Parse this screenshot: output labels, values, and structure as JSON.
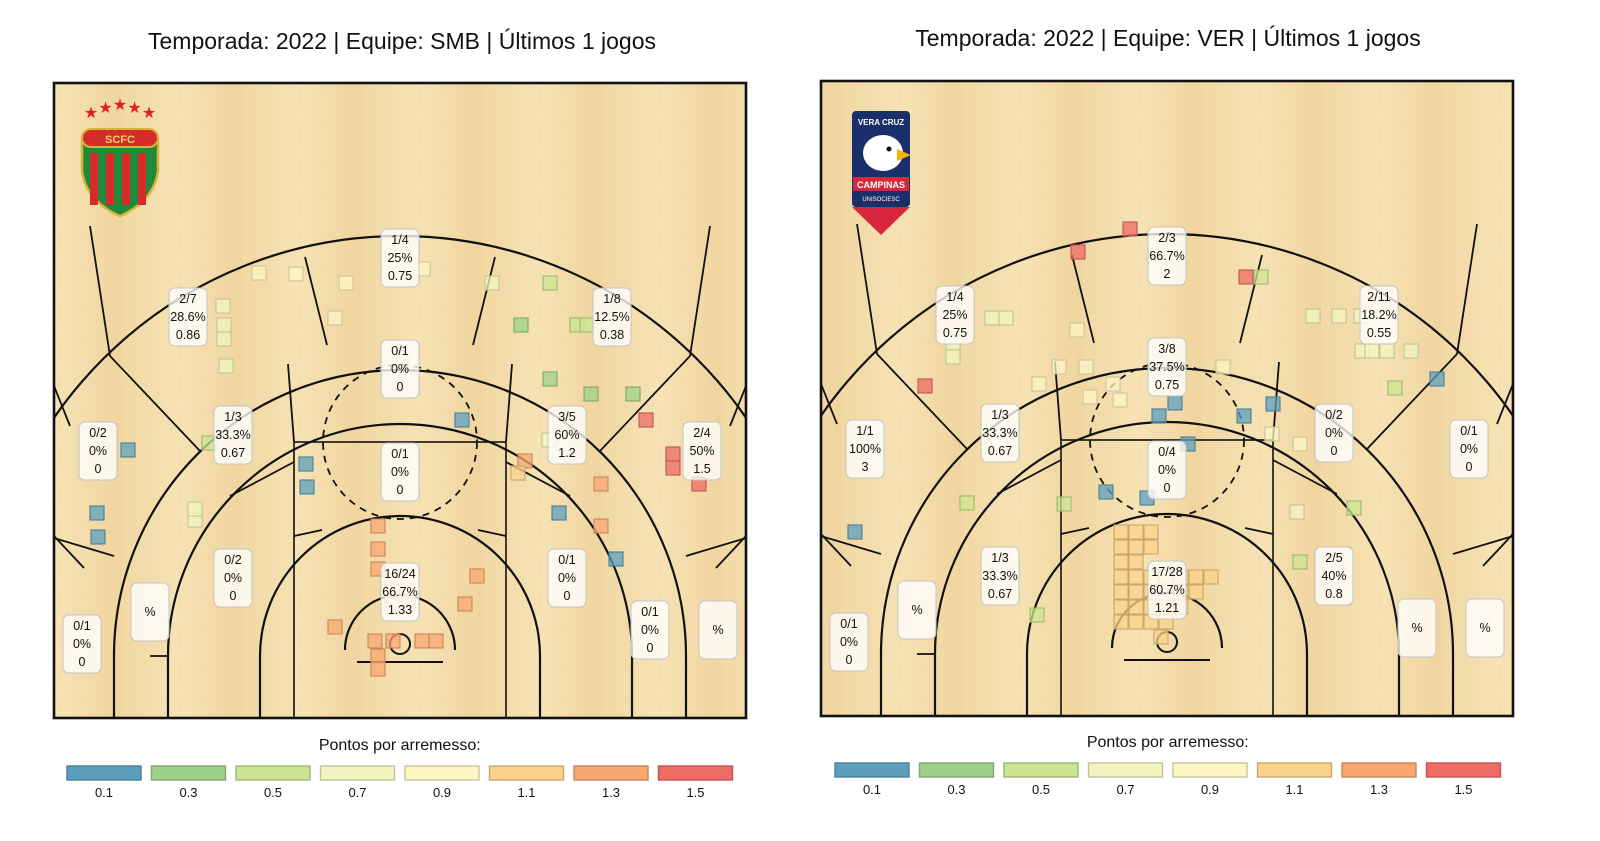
{
  "colorbar": {
    "title": "Pontos por arremesso:",
    "stops": [
      {
        "label": "0.1",
        "color": "#5b9fbd"
      },
      {
        "label": "0.3",
        "color": "#9fd18a"
      },
      {
        "label": "0.5",
        "color": "#cbe590"
      },
      {
        "label": "0.7",
        "color": "#f1f5bf"
      },
      {
        "label": "0.9",
        "color": "#fcf6c3"
      },
      {
        "label": "1.1",
        "color": "#fbd28a"
      },
      {
        "label": "1.3",
        "color": "#f9a771"
      },
      {
        "label": "1.5",
        "color": "#ee6b66"
      }
    ]
  },
  "chart_data": [
    {
      "type": "scatter",
      "title": "Temporada: 2022  |  Equipe: SMB | Últimos 1 jogos",
      "team": "SMB",
      "logo": {
        "type": "crest",
        "text": "SCFC"
      },
      "zones": [
        {
          "made": "1/4",
          "pct": "25%",
          "ppa": "0.75",
          "zone": "top-of-key-3"
        },
        {
          "made": "2/7",
          "pct": "28.6%",
          "ppa": "0.86",
          "zone": "left-wing-3"
        },
        {
          "made": "1/8",
          "pct": "12.5%",
          "ppa": "0.38",
          "zone": "right-wing-3"
        },
        {
          "made": "0/1",
          "pct": "0%",
          "ppa": "0",
          "zone": "top-long-mid"
        },
        {
          "made": "1/3",
          "pct": "33.3%",
          "ppa": "0.67",
          "zone": "left-long-mid"
        },
        {
          "made": "3/5",
          "pct": "60%",
          "ppa": "1.2",
          "zone": "right-long-mid"
        },
        {
          "made": "0/2",
          "pct": "0%",
          "ppa": "0",
          "zone": "left-corner-3-upper"
        },
        {
          "made": "2/4",
          "pct": "50%",
          "ppa": "1.5",
          "zone": "right-corner-3-upper"
        },
        {
          "made": "0/1",
          "pct": "0%",
          "ppa": "0",
          "zone": "paint-top"
        },
        {
          "made": "0/2",
          "pct": "0%",
          "ppa": "0",
          "zone": "left-short-mid"
        },
        {
          "made": "0/1",
          "pct": "0%",
          "ppa": "0",
          "zone": "right-short-mid"
        },
        {
          "made": "16/24",
          "pct": "66.7%",
          "ppa": "1.33",
          "zone": "restricted-area"
        },
        {
          "made": "",
          "pct": "%",
          "ppa": "",
          "zone": "left-baseline-mid"
        },
        {
          "made": "0/1",
          "pct": "0%",
          "ppa": "0",
          "zone": "right-baseline-mid"
        },
        {
          "made": "0/1",
          "pct": "0%",
          "ppa": "0",
          "zone": "left-corner-3"
        },
        {
          "made": "",
          "pct": "%",
          "ppa": "",
          "zone": "right-corner-3"
        }
      ],
      "shots": [
        {
          "x": -141,
          "y": 383,
          "v": 0.9
        },
        {
          "x": -104,
          "y": 382,
          "v": 0.9
        },
        {
          "x": -54,
          "y": 373,
          "v": 0.9
        },
        {
          "x": 23,
          "y": 387,
          "v": 0.9
        },
        {
          "x": 92,
          "y": 373,
          "v": 0.7
        },
        {
          "x": 150,
          "y": 373,
          "v": 0.5
        },
        {
          "x": -222,
          "y": 330,
          "v": 0.9
        },
        {
          "x": -177,
          "y": 350,
          "v": 0.7
        },
        {
          "x": -176,
          "y": 331,
          "v": 0.7
        },
        {
          "x": -176,
          "y": 317,
          "v": 0.7
        },
        {
          "x": -174,
          "y": 290,
          "v": 0.7
        },
        {
          "x": -65,
          "y": 338,
          "v": 0.9
        },
        {
          "x": 121,
          "y": 331,
          "v": 0.3
        },
        {
          "x": 177,
          "y": 331,
          "v": 0.5
        },
        {
          "x": 187,
          "y": 331,
          "v": 0.5
        },
        {
          "x": 150,
          "y": 277,
          "v": 0.3
        },
        {
          "x": 191,
          "y": 262,
          "v": 0.3
        },
        {
          "x": 233,
          "y": 262,
          "v": 0.3
        },
        {
          "x": 246,
          "y": 236,
          "v": 1.5
        },
        {
          "x": -191,
          "y": 213,
          "v": 0.5
        },
        {
          "x": 62,
          "y": 236,
          "v": 0.1
        },
        {
          "x": 149,
          "y": 216,
          "v": 0.7
        },
        {
          "x": -272,
          "y": 206,
          "v": 0.1
        },
        {
          "x": -303,
          "y": 143,
          "v": 0.1
        },
        {
          "x": -302,
          "y": 119,
          "v": 0.1
        },
        {
          "x": -205,
          "y": 136,
          "v": 0.7
        },
        {
          "x": -205,
          "y": 147,
          "v": 0.7
        },
        {
          "x": -94,
          "y": 192,
          "v": 0.1
        },
        {
          "x": -93,
          "y": 169,
          "v": 0.1
        },
        {
          "x": 125,
          "y": 195,
          "v": 1.3
        },
        {
          "x": 118,
          "y": 183,
          "v": 1.1
        },
        {
          "x": 159,
          "y": 143,
          "v": 0.1
        },
        {
          "x": 201,
          "y": 172,
          "v": 1.3
        },
        {
          "x": 201,
          "y": 130,
          "v": 1.3
        },
        {
          "x": 216,
          "y": 97,
          "v": 0.1
        },
        {
          "x": 273,
          "y": 202,
          "v": 1.5
        },
        {
          "x": 273,
          "y": 188,
          "v": 1.5
        },
        {
          "x": 299,
          "y": 172,
          "v": 1.5
        },
        {
          "x": -22,
          "y": 130,
          "v": 1.3
        },
        {
          "x": -22,
          "y": 107,
          "v": 1.3
        },
        {
          "x": -22,
          "y": 87,
          "v": 1.3
        },
        {
          "x": 77,
          "y": 80,
          "v": 1.3
        },
        {
          "x": 65,
          "y": 52,
          "v": 1.3
        },
        {
          "x": -65,
          "y": 29,
          "v": 1.3
        },
        {
          "x": -25,
          "y": 15,
          "v": 1.3
        },
        {
          "x": -22,
          "y": 0,
          "v": 1.3
        },
        {
          "x": -22,
          "y": -13,
          "v": 1.3
        },
        {
          "x": -7,
          "y": 15,
          "v": 1.3
        },
        {
          "x": 22,
          "y": 15,
          "v": 1.3
        },
        {
          "x": 36,
          "y": 15,
          "v": 1.3
        },
        {
          "x": -8,
          "y": 65,
          "v": 1.1
        },
        {
          "x": 8,
          "y": 65,
          "v": 1.1
        },
        {
          "x": -8,
          "y": 52,
          "v": 1.1
        },
        {
          "x": 8,
          "y": 52,
          "v": 1.1
        }
      ]
    },
    {
      "type": "scatter",
      "title": "Temporada: 2022  |  Equipe: VER | Últimos 1 jogos",
      "team": "VER",
      "logo": {
        "type": "badge",
        "lines": [
          "VERA CRUZ",
          "CAMPINAS",
          "UNISOCIESC"
        ]
      },
      "zones": [
        {
          "made": "2/3",
          "pct": "66.7%",
          "ppa": "2",
          "zone": "top-of-key-3"
        },
        {
          "made": "1/4",
          "pct": "25%",
          "ppa": "0.75",
          "zone": "left-wing-3"
        },
        {
          "made": "2/11",
          "pct": "18.2%",
          "ppa": "0.55",
          "zone": "right-wing-3"
        },
        {
          "made": "3/8",
          "pct": "37.5%",
          "ppa": "0.75",
          "zone": "top-long-mid"
        },
        {
          "made": "1/3",
          "pct": "33.3%",
          "ppa": "0.67",
          "zone": "left-long-mid"
        },
        {
          "made": "0/2",
          "pct": "0%",
          "ppa": "0",
          "zone": "right-long-mid"
        },
        {
          "made": "1/1",
          "pct": "100%",
          "ppa": "3",
          "zone": "left-corner-3-upper"
        },
        {
          "made": "0/1",
          "pct": "0%",
          "ppa": "0",
          "zone": "right-corner-3-upper"
        },
        {
          "made": "0/4",
          "pct": "0%",
          "ppa": "0",
          "zone": "paint-top"
        },
        {
          "made": "1/3",
          "pct": "33.3%",
          "ppa": "0.67",
          "zone": "left-short-mid"
        },
        {
          "made": "2/5",
          "pct": "40%",
          "ppa": "0.8",
          "zone": "right-short-mid"
        },
        {
          "made": "17/28",
          "pct": "60.7%",
          "ppa": "1.21",
          "zone": "restricted-area"
        },
        {
          "made": "",
          "pct": "%",
          "ppa": "",
          "zone": "left-baseline-mid"
        },
        {
          "made": "",
          "pct": "%",
          "ppa": "",
          "zone": "right-baseline-mid"
        },
        {
          "made": "0/1",
          "pct": "0%",
          "ppa": "0",
          "zone": "left-corner-3"
        },
        {
          "made": "",
          "pct": "%",
          "ppa": "",
          "zone": "right-corner-3"
        }
      ],
      "shots": [
        {
          "x": -37,
          "y": 425,
          "v": 1.5
        },
        {
          "x": -89,
          "y": 402,
          "v": 1.5
        },
        {
          "x": 79,
          "y": 377,
          "v": 1.5
        },
        {
          "x": 94,
          "y": 377,
          "v": 0.5
        },
        {
          "x": -175,
          "y": 336,
          "v": 0.7
        },
        {
          "x": -161,
          "y": 336,
          "v": 0.7
        },
        {
          "x": -214,
          "y": 311,
          "v": 0.7
        },
        {
          "x": -214,
          "y": 297,
          "v": 0.7
        },
        {
          "x": -90,
          "y": 324,
          "v": 0.9
        },
        {
          "x": -108,
          "y": 287,
          "v": 0.9
        },
        {
          "x": -81,
          "y": 287,
          "v": 0.9
        },
        {
          "x": -128,
          "y": 270,
          "v": 0.9
        },
        {
          "x": -77,
          "y": 257,
          "v": 0.9
        },
        {
          "x": -47,
          "y": 254,
          "v": 0.9
        },
        {
          "x": -54,
          "y": 270,
          "v": 0.9
        },
        {
          "x": 56,
          "y": 287,
          "v": 0.9
        },
        {
          "x": 146,
          "y": 338,
          "v": 0.7
        },
        {
          "x": 172,
          "y": 338,
          "v": 0.7
        },
        {
          "x": 194,
          "y": 338,
          "v": 0.7
        },
        {
          "x": 195,
          "y": 303,
          "v": 0.7
        },
        {
          "x": 205,
          "y": 303,
          "v": 0.7
        },
        {
          "x": 220,
          "y": 303,
          "v": 0.7
        },
        {
          "x": 228,
          "y": 266,
          "v": 0.5
        },
        {
          "x": 244,
          "y": 303,
          "v": 0.7
        },
        {
          "x": 270,
          "y": 275,
          "v": 0.1
        },
        {
          "x": -242,
          "y": 268,
          "v": 1.5
        },
        {
          "x": 8,
          "y": 251,
          "v": 0.1
        },
        {
          "x": -8,
          "y": 238,
          "v": 0.1
        },
        {
          "x": 21,
          "y": 210,
          "v": 0.1
        },
        {
          "x": 77,
          "y": 238,
          "v": 0.1
        },
        {
          "x": 105,
          "y": 220,
          "v": 0.9
        },
        {
          "x": 106,
          "y": 250,
          "v": 0.1
        },
        {
          "x": 133,
          "y": 210,
          "v": 0.9
        },
        {
          "x": -168,
          "y": 210,
          "v": 0.7
        },
        {
          "x": -200,
          "y": 151,
          "v": 0.5
        },
        {
          "x": -103,
          "y": 150,
          "v": 0.5
        },
        {
          "x": -61,
          "y": 162,
          "v": 0.1
        },
        {
          "x": -20,
          "y": 156,
          "v": 0.1
        },
        {
          "x": 130,
          "y": 142,
          "v": 0.7
        },
        {
          "x": 187,
          "y": 146,
          "v": 0.5
        },
        {
          "x": 133,
          "y": 92,
          "v": 0.5
        },
        {
          "x": -312,
          "y": 122,
          "v": 0.1
        },
        {
          "x": -130,
          "y": 39,
          "v": 0.5
        },
        {
          "x": -46,
          "y": 122,
          "v": 1.1
        },
        {
          "x": -31,
          "y": 122,
          "v": 1.1
        },
        {
          "x": -16,
          "y": 122,
          "v": 1.1
        },
        {
          "x": -46,
          "y": 107,
          "v": 1.1
        },
        {
          "x": -31,
          "y": 107,
          "v": 1.1
        },
        {
          "x": -16,
          "y": 107,
          "v": 1.1
        },
        {
          "x": -46,
          "y": 92,
          "v": 1.1
        },
        {
          "x": -31,
          "y": 92,
          "v": 1.1
        },
        {
          "x": -46,
          "y": 77,
          "v": 1.1
        },
        {
          "x": -31,
          "y": 77,
          "v": 1.1
        },
        {
          "x": -16,
          "y": 77,
          "v": 1.1
        },
        {
          "x": -1,
          "y": 77,
          "v": 1.1
        },
        {
          "x": 14,
          "y": 77,
          "v": 1.1
        },
        {
          "x": 29,
          "y": 77,
          "v": 1.1
        },
        {
          "x": 44,
          "y": 77,
          "v": 1.1
        },
        {
          "x": -46,
          "y": 62,
          "v": 1.1
        },
        {
          "x": -31,
          "y": 62,
          "v": 1.1
        },
        {
          "x": -16,
          "y": 62,
          "v": 1.1
        },
        {
          "x": 14,
          "y": 62,
          "v": 1.1
        },
        {
          "x": 29,
          "y": 62,
          "v": 1.1
        },
        {
          "x": -46,
          "y": 47,
          "v": 1.1
        },
        {
          "x": -31,
          "y": 47,
          "v": 1.1
        },
        {
          "x": -16,
          "y": 47,
          "v": 1.1
        },
        {
          "x": -1,
          "y": 47,
          "v": 1.1
        },
        {
          "x": 14,
          "y": 47,
          "v": 1.1
        },
        {
          "x": -46,
          "y": 32,
          "v": 1.1
        },
        {
          "x": -31,
          "y": 32,
          "v": 1.1
        },
        {
          "x": -16,
          "y": 32,
          "v": 1.1
        },
        {
          "x": -1,
          "y": 32,
          "v": 1.1
        },
        {
          "x": -6,
          "y": 17,
          "v": 1.1
        }
      ]
    }
  ]
}
